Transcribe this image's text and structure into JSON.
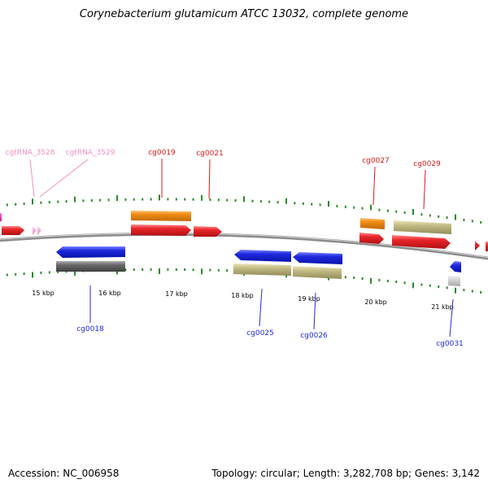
{
  "title": "Corynebacterium glutamicum ATCC 13032, complete genome",
  "footer": {
    "accession": "Accession: NC_006958",
    "summary": "Topology: circular; Length: 3,282,708 bp; Genes: 3,142"
  },
  "colors": {
    "cds_red": "#e8262a",
    "gene_orange": "#f08c14",
    "rna_pink": "#f4a6c8",
    "cds_blue": "#1f2ae0",
    "gene_khaki": "#c4bd86",
    "gene_gray": "#6b6b6b",
    "gene_lightgray": "#cfcfcf",
    "tick_green": "#2a8a2a",
    "backbone": "#8c8c8c"
  },
  "ticks": {
    "labels": [
      "15 kbp",
      "16 kbp",
      "17 kbp",
      "18 kbp",
      "19 kbp",
      "20 kbp",
      "21 kbp"
    ]
  },
  "labels": {
    "cgtRNA_3528": "cgtRNA_3528",
    "cgtRNA_3529": "cgtRNA_3529",
    "cg0019": "cg0019",
    "cg0021": "cg0021",
    "cg0027": "cg0027",
    "cg0029": "cg0029",
    "cg0018": "cg0018",
    "cg0025": "cg0025",
    "cg0026": "cg0026",
    "cg0031": "cg0031"
  }
}
